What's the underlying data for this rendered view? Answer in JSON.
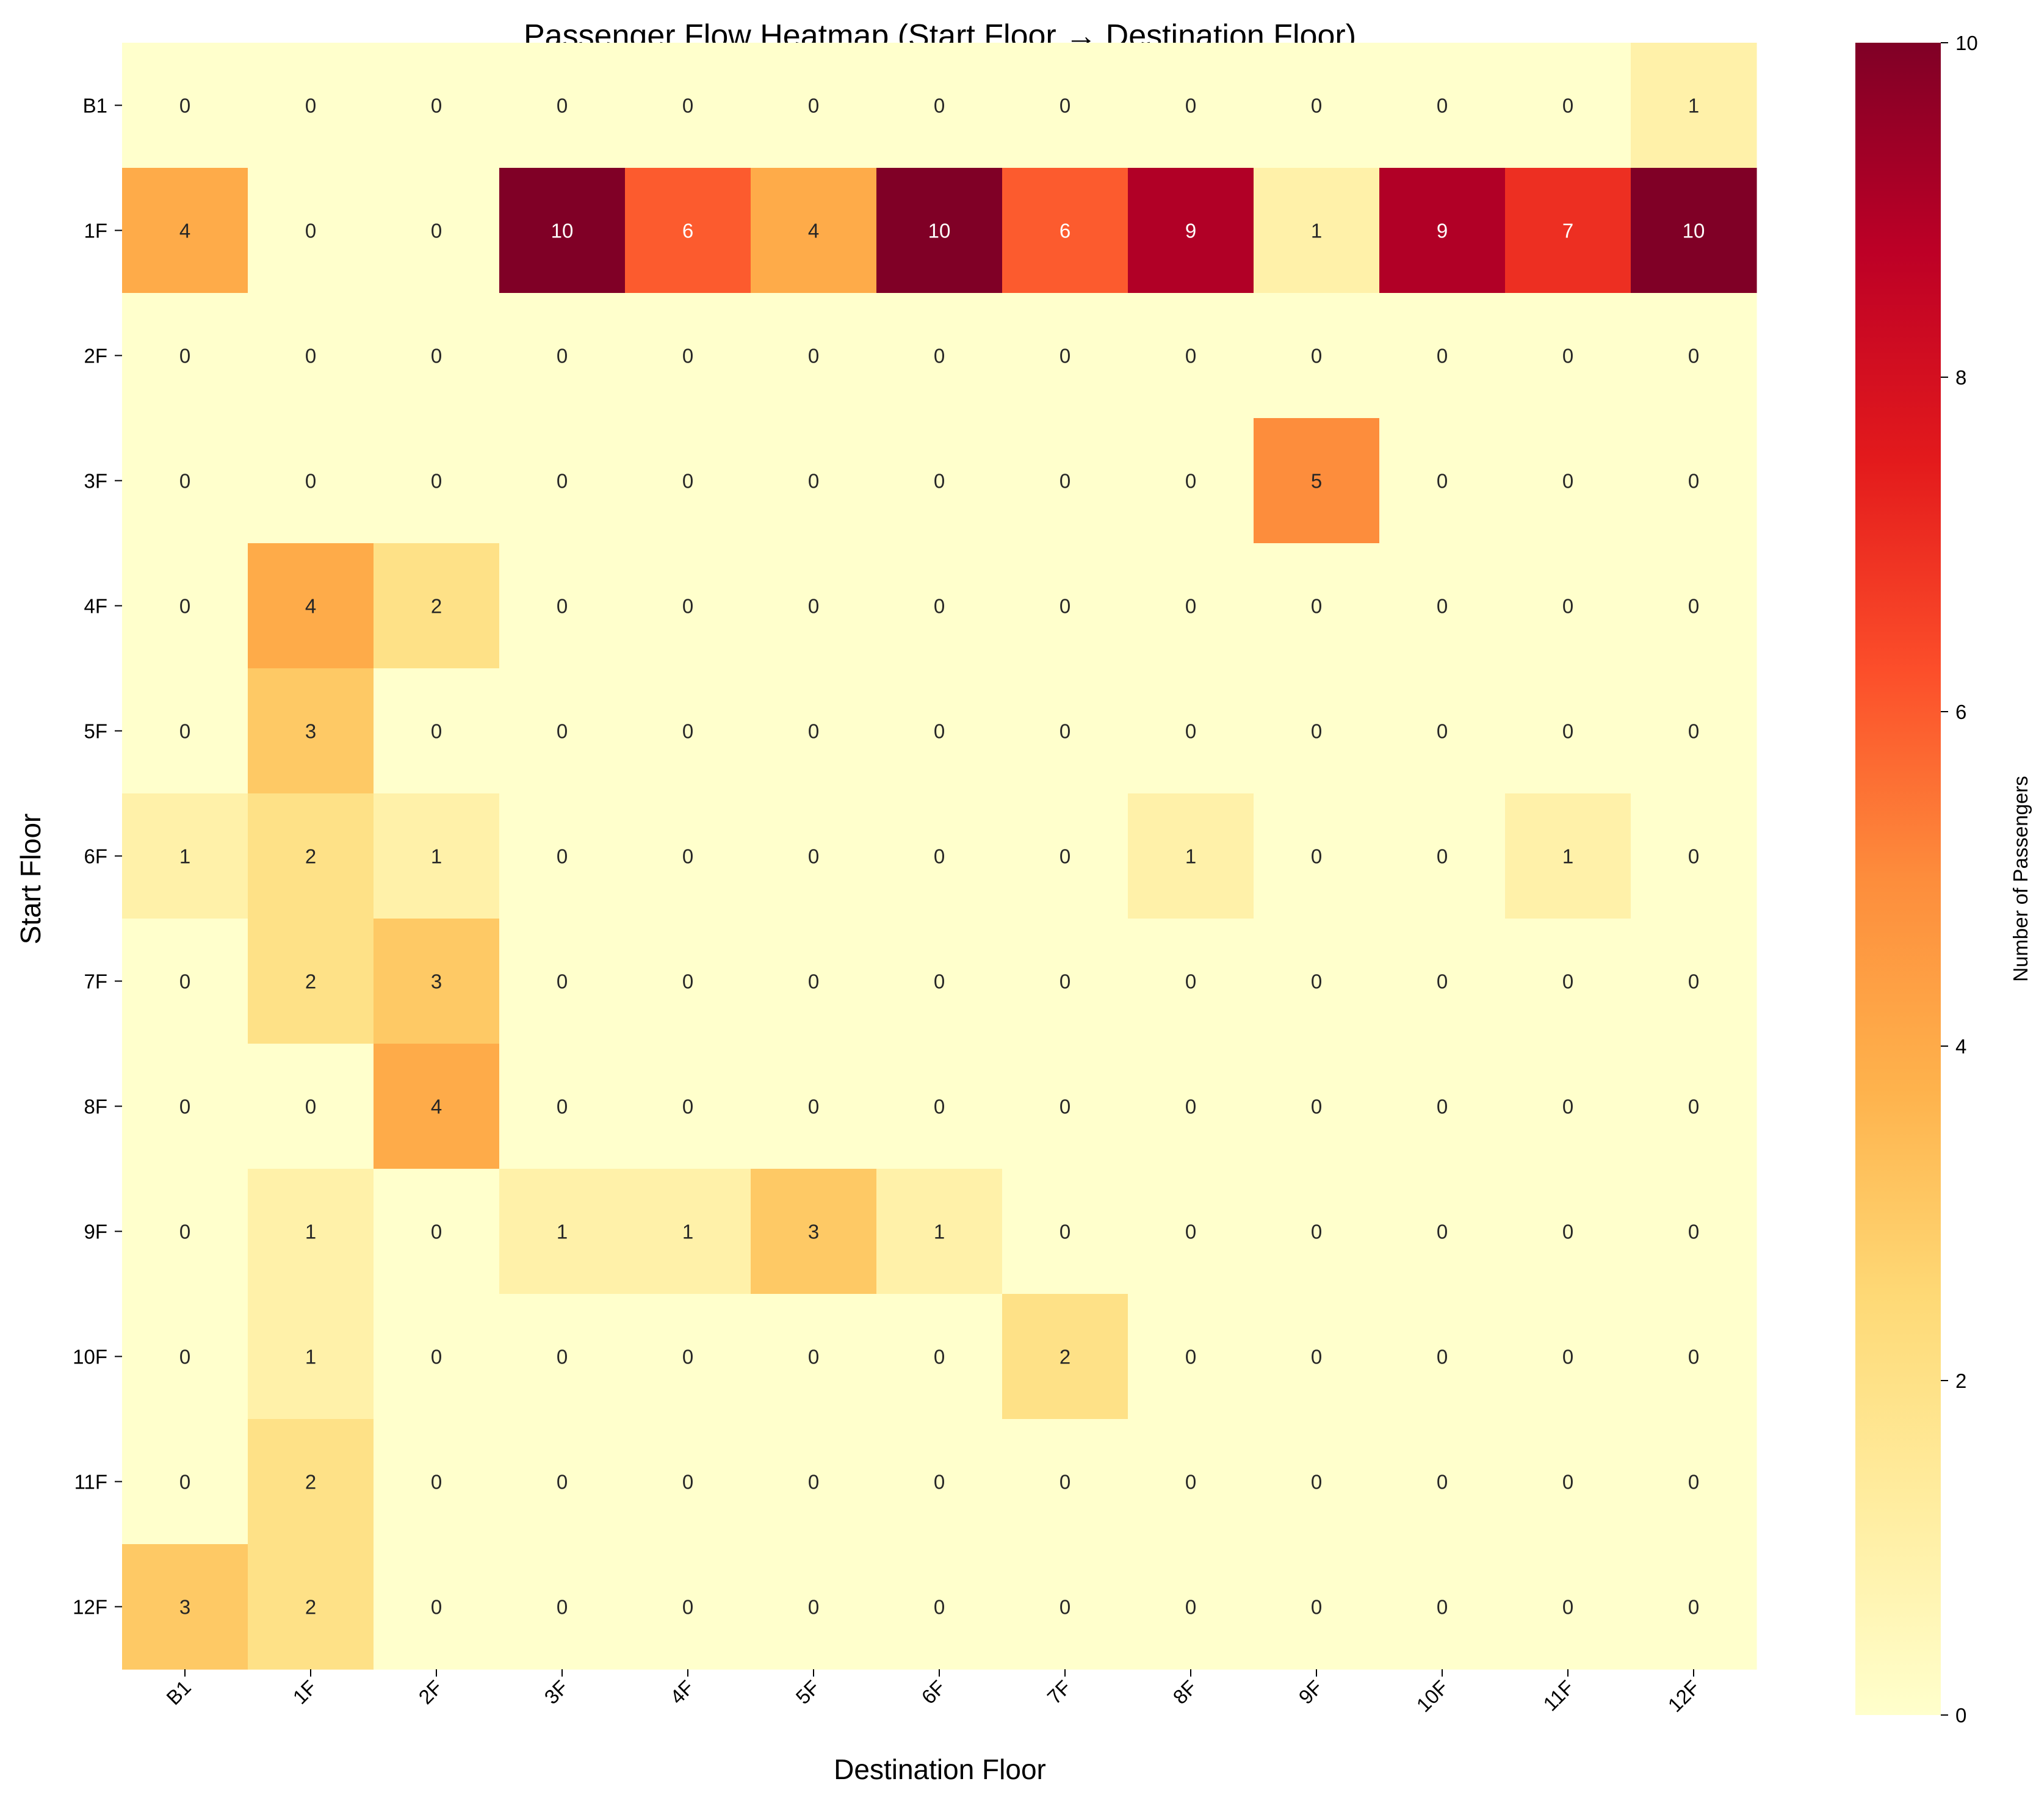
{
  "chart_data": {
    "type": "heatmap",
    "title": "Passenger Flow Heatmap (Start Floor → Destination Floor)",
    "xlabel": "Destination Floor",
    "ylabel": "Start Floor",
    "x_categories": [
      "B1",
      "1F",
      "2F",
      "3F",
      "4F",
      "5F",
      "6F",
      "7F",
      "8F",
      "9F",
      "10F",
      "11F",
      "12F"
    ],
    "y_categories": [
      "B1",
      "1F",
      "2F",
      "3F",
      "4F",
      "5F",
      "6F",
      "7F",
      "8F",
      "9F",
      "10F",
      "11F",
      "12F"
    ],
    "values": [
      [
        0,
        0,
        0,
        0,
        0,
        0,
        0,
        0,
        0,
        0,
        0,
        0,
        1
      ],
      [
        4,
        0,
        0,
        10,
        6,
        4,
        10,
        6,
        9,
        1,
        9,
        7,
        10
      ],
      [
        0,
        0,
        0,
        0,
        0,
        0,
        0,
        0,
        0,
        0,
        0,
        0,
        0
      ],
      [
        0,
        0,
        0,
        0,
        0,
        0,
        0,
        0,
        0,
        5,
        0,
        0,
        0
      ],
      [
        0,
        4,
        2,
        0,
        0,
        0,
        0,
        0,
        0,
        0,
        0,
        0,
        0
      ],
      [
        0,
        3,
        0,
        0,
        0,
        0,
        0,
        0,
        0,
        0,
        0,
        0,
        0
      ],
      [
        1,
        2,
        1,
        0,
        0,
        0,
        0,
        0,
        1,
        0,
        0,
        1,
        0
      ],
      [
        0,
        2,
        3,
        0,
        0,
        0,
        0,
        0,
        0,
        0,
        0,
        0,
        0
      ],
      [
        0,
        0,
        4,
        0,
        0,
        0,
        0,
        0,
        0,
        0,
        0,
        0,
        0
      ],
      [
        0,
        1,
        0,
        1,
        1,
        3,
        1,
        0,
        0,
        0,
        0,
        0,
        0
      ],
      [
        0,
        1,
        0,
        0,
        0,
        0,
        0,
        2,
        0,
        0,
        0,
        0,
        0
      ],
      [
        0,
        2,
        0,
        0,
        0,
        0,
        0,
        0,
        0,
        0,
        0,
        0,
        0
      ],
      [
        3,
        2,
        0,
        0,
        0,
        0,
        0,
        0,
        0,
        0,
        0,
        0,
        0
      ]
    ],
    "colormap": "YlOrRd",
    "vmin": 0,
    "vmax": 10,
    "colorbar": {
      "label": "Number of Passengers",
      "ticks": [
        0,
        2,
        4,
        6,
        8,
        10
      ],
      "placement": "right"
    },
    "annotations": true
  }
}
